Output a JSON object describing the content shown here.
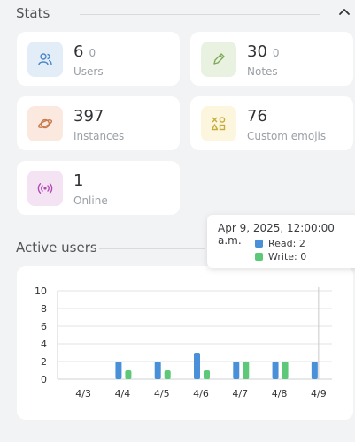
{
  "section": {
    "title": "Stats"
  },
  "stats": [
    {
      "value": "6",
      "delta": "0",
      "label": "Users",
      "icon": "users-icon"
    },
    {
      "value": "30",
      "delta": "0",
      "label": "Notes",
      "icon": "pencil-icon"
    },
    {
      "value": "397",
      "label": "Instances",
      "icon": "planet-icon"
    },
    {
      "value": "76",
      "label": "Custom emojis",
      "icon": "shapes-icon"
    },
    {
      "value": "1",
      "label": "Online",
      "icon": "broadcast-icon"
    }
  ],
  "chart_title": "Active users",
  "tooltip": {
    "title": "Apr 9, 2025, 12:00:00 a.m.",
    "read": "Read: 2",
    "write": "Write: 0"
  },
  "colors": {
    "read": "#4a90d9",
    "write": "#5cc878",
    "users_bg": "#e3edf8",
    "users_fg": "#4a86c6",
    "notes_bg": "#e9f2e0",
    "notes_fg": "#7fa85a",
    "instances_bg": "#fbe9e0",
    "instances_fg": "#c97a4b",
    "emojis_bg": "#fbf6dd",
    "emojis_fg": "#c9aa3a",
    "online_bg": "#f3e3f3",
    "online_fg": "#b14bb3"
  },
  "chart_data": {
    "type": "bar",
    "title": "Active users",
    "categories": [
      "4/3",
      "4/4",
      "4/5",
      "4/6",
      "4/7",
      "4/8",
      "4/9"
    ],
    "series": [
      {
        "name": "Read",
        "values": [
          0,
          2,
          2,
          3,
          2,
          2,
          2
        ]
      },
      {
        "name": "Write",
        "values": [
          0,
          1,
          1,
          1,
          2,
          2,
          0
        ]
      }
    ],
    "yticks": [
      "0",
      "2",
      "4",
      "6",
      "8",
      "10"
    ],
    "ylim": [
      0,
      10
    ],
    "grid": true
  }
}
